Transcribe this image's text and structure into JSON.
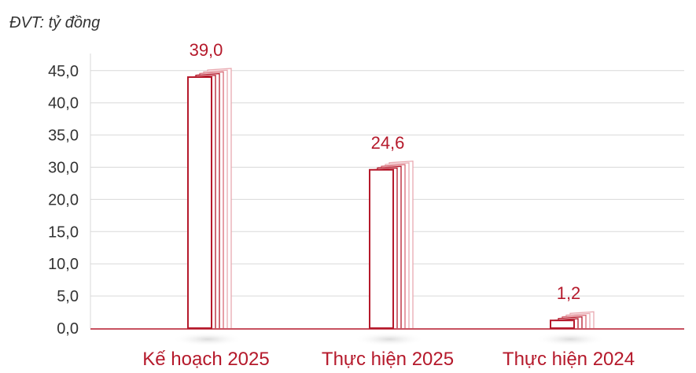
{
  "unit_label": "ĐVT: tỷ đồng",
  "colors": {
    "accent": "#b5192b",
    "grid": "#d9d9d9",
    "text": "#333333"
  },
  "chart_data": {
    "type": "bar",
    "categories": [
      "Kế hoạch 2025",
      "Thực hiện 2025",
      "Thực hiện 2024"
    ],
    "values": [
      39.0,
      24.6,
      1.2
    ],
    "value_labels": [
      "39,0",
      "24,6",
      "1,2"
    ],
    "ytick_labels": [
      "0,0",
      "5,0",
      "10,0",
      "15,0",
      "20,0",
      "30,0",
      "35,0",
      "40,0",
      "45,0"
    ],
    "grid": true,
    "title": "",
    "xlabel": "",
    "ylabel": ""
  }
}
